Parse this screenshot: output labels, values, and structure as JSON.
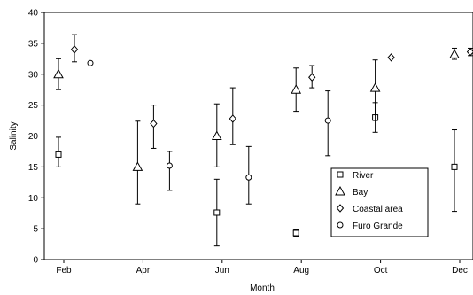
{
  "chart_data": {
    "type": "scatter",
    "xlabel": "Month",
    "ylabel": "Salinity",
    "categories": [
      "Feb",
      "Apr",
      "Jun",
      "Aug",
      "Oct",
      "Dec"
    ],
    "ylim": [
      0,
      40
    ],
    "yticks": [
      0,
      5,
      10,
      15,
      20,
      25,
      30,
      35,
      40
    ],
    "grid": false,
    "legend_position": "lower-right",
    "series": [
      {
        "name": "River",
        "marker": "square",
        "points": [
          {
            "category": "Feb",
            "mean": 17.0,
            "low": 15.0,
            "high": 19.8
          },
          {
            "category": "Jun",
            "mean": 7.6,
            "low": 2.2,
            "high": 13.0
          },
          {
            "category": "Aug",
            "mean": 4.3,
            "low": 3.8,
            "high": 4.8
          },
          {
            "category": "Oct",
            "mean": 23.0,
            "low": 20.6,
            "high": 25.4
          },
          {
            "category": "Dec",
            "mean": 15.0,
            "low": 7.8,
            "high": 21.0
          }
        ]
      },
      {
        "name": "Bay",
        "marker": "triangle",
        "points": [
          {
            "category": "Feb",
            "mean": 30.0,
            "low": 27.5,
            "high": 32.5
          },
          {
            "category": "Apr",
            "mean": 15.0,
            "low": 9.0,
            "high": 22.4
          },
          {
            "category": "Jun",
            "mean": 20.0,
            "low": 15.0,
            "high": 25.2
          },
          {
            "category": "Aug",
            "mean": 27.5,
            "low": 24.0,
            "high": 31.0
          },
          {
            "category": "Oct",
            "mean": 27.8,
            "low": 22.5,
            "high": 32.3
          },
          {
            "category": "Dec",
            "mean": 33.2,
            "low": 32.4,
            "high": 34.2
          }
        ]
      },
      {
        "name": "Coastal area",
        "marker": "diamond",
        "points": [
          {
            "category": "Feb",
            "mean": 34.0,
            "low": 32.0,
            "high": 36.4
          },
          {
            "category": "Apr",
            "mean": 22.0,
            "low": 18.0,
            "high": 25.0
          },
          {
            "category": "Jun",
            "mean": 22.8,
            "low": 18.6,
            "high": 27.8
          },
          {
            "category": "Aug",
            "mean": 29.5,
            "low": 27.8,
            "high": 31.4
          },
          {
            "category": "Oct",
            "mean": 32.7,
            "low": 32.7,
            "high": 32.7
          },
          {
            "category": "Dec",
            "mean": 33.6,
            "low": 33.0,
            "high": 34.2
          }
        ]
      },
      {
        "name": "Furo Grande",
        "marker": "circle",
        "points": [
          {
            "category": "Feb",
            "mean": 31.8,
            "low": 31.8,
            "high": 31.8
          },
          {
            "category": "Apr",
            "mean": 15.2,
            "low": 11.2,
            "high": 17.5
          },
          {
            "category": "Jun",
            "mean": 13.3,
            "low": 9.0,
            "high": 18.3
          },
          {
            "category": "Aug",
            "mean": 22.5,
            "low": 16.8,
            "high": 27.3
          },
          {
            "category": "Dec",
            "mean": 34.0,
            "low": 34.0,
            "high": 34.0
          }
        ]
      }
    ]
  }
}
